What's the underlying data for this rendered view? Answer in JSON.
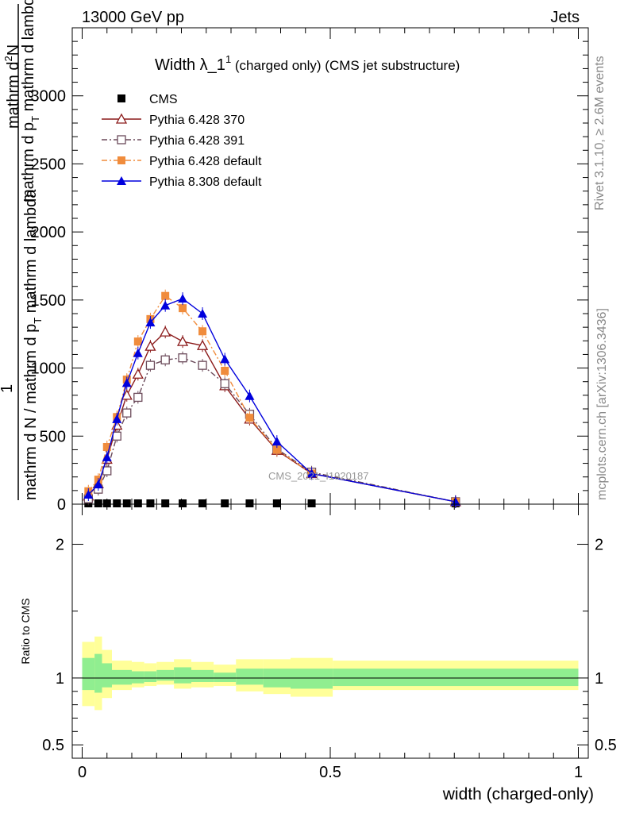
{
  "header": {
    "left": "13000 GeV pp",
    "right": "Jets"
  },
  "side": {
    "rivet": "Rivet 3.1.10, ≥ 2.6M events",
    "mcplots": "mcplots.cern.ch [arXiv:1306.3436]"
  },
  "watermark": "CMS_2021_I1920187",
  "title": {
    "main": "Width λ_1",
    "sup": "1",
    "sub": " (charged only) (CMS jet substructure)"
  },
  "ylabel": {
    "numerator_top": "mathrm d",
    "numerator_sup": "2",
    "numerator_rest": "N",
    "sub_part": "mathrm d p",
    "sub_T": "T",
    "sub_rest": " mathrm d lambda",
    "leading": "1",
    "denominator": "mathrm d N / mathrm d p",
    "denominator_T": "T",
    "denominator_rest": " mathrm d"
  },
  "ratio_ylabel": "Ratio to CMS",
  "xlabel": "width (charged-only)",
  "legend": [
    {
      "label": "CMS",
      "color": "#000000",
      "marker": "filled-square",
      "style": "none"
    },
    {
      "label": "Pythia 6.428 370",
      "color": "#8b1a1a",
      "marker": "open-triangle",
      "style": "solid"
    },
    {
      "label": "Pythia 6.428 391",
      "color": "#6b4a5a",
      "marker": "open-square",
      "style": "dashdot"
    },
    {
      "label": "Pythia 6.428 default",
      "color": "#f08c3c",
      "marker": "filled-square",
      "style": "dashdot"
    },
    {
      "label": "Pythia 8.308 default",
      "color": "#0000dd",
      "marker": "filled-triangle",
      "style": "solid"
    }
  ],
  "chart_data": [
    {
      "type": "line",
      "title": "Width λ_1^1 (charged only) (CMS jet substructure)",
      "xlim": [
        -0.02,
        1.02
      ],
      "ylim": [
        0,
        3500
      ],
      "ytick_values": [
        0,
        500,
        1000,
        1500,
        2000,
        2500,
        3000
      ],
      "ytick_labels": [
        "0",
        "500",
        "1000",
        "1500",
        "2000",
        "2500",
        "3000"
      ],
      "grid": false,
      "legend_position": "top-left",
      "x": [
        0.0125,
        0.0325,
        0.05,
        0.07,
        0.09,
        0.1125,
        0.1375,
        0.1675,
        0.2025,
        0.2425,
        0.2875,
        0.3375,
        0.3925,
        0.4625,
        0.7525
      ],
      "series": [
        {
          "name": "CMS",
          "values": [
            2,
            2,
            2,
            2,
            2,
            2,
            2,
            2,
            2,
            2,
            2,
            2,
            2,
            2,
            2
          ]
        },
        {
          "name": "Pythia 6.428 370",
          "values": [
            60,
            150,
            330,
            580,
            800,
            955,
            1160,
            1265,
            1195,
            1165,
            870,
            625,
            395,
            225,
            18
          ]
        },
        {
          "name": "Pythia 6.428 391",
          "values": [
            40,
            110,
            245,
            500,
            670,
            785,
            1020,
            1060,
            1075,
            1020,
            885,
            660,
            405,
            235,
            18
          ]
        },
        {
          "name": "Pythia 6.428 default",
          "values": [
            95,
            180,
            420,
            640,
            915,
            1195,
            1360,
            1530,
            1440,
            1270,
            980,
            635,
            400,
            225,
            18
          ]
        },
        {
          "name": "Pythia 8.308 default",
          "values": [
            70,
            145,
            345,
            625,
            890,
            1110,
            1335,
            1460,
            1510,
            1400,
            1065,
            795,
            460,
            225,
            18
          ]
        }
      ]
    },
    {
      "type": "area",
      "ylabel": "Ratio to CMS",
      "xlabel": "width (charged-only)",
      "xlim": [
        -0.02,
        1.02
      ],
      "ylim": [
        0.4,
        2.3
      ],
      "ytick_values": [
        0.5,
        1,
        2
      ],
      "ytick_labels": [
        "0.5",
        "1",
        "2"
      ],
      "xtick_values": [
        0,
        0.5,
        1
      ],
      "xtick_labels": [
        "0",
        "0.5",
        "1"
      ],
      "bins": [
        {
          "lo": 0.0,
          "hi": 0.025,
          "inner": [
            0.91,
            1.15
          ],
          "outer": [
            0.79,
            1.27
          ]
        },
        {
          "lo": 0.025,
          "hi": 0.04,
          "inner": [
            0.89,
            1.18
          ],
          "outer": [
            0.76,
            1.31
          ]
        },
        {
          "lo": 0.04,
          "hi": 0.06,
          "inner": [
            0.93,
            1.11
          ],
          "outer": [
            0.85,
            1.21
          ]
        },
        {
          "lo": 0.06,
          "hi": 0.08,
          "inner": [
            0.95,
            1.06
          ],
          "outer": [
            0.91,
            1.13
          ]
        },
        {
          "lo": 0.08,
          "hi": 0.1,
          "inner": [
            0.95,
            1.06
          ],
          "outer": [
            0.91,
            1.13
          ]
        },
        {
          "lo": 0.1,
          "hi": 0.125,
          "inner": [
            0.96,
            1.05
          ],
          "outer": [
            0.93,
            1.12
          ]
        },
        {
          "lo": 0.125,
          "hi": 0.15,
          "inner": [
            0.97,
            1.05
          ],
          "outer": [
            0.94,
            1.11
          ]
        },
        {
          "lo": 0.15,
          "hi": 0.185,
          "inner": [
            0.98,
            1.06
          ],
          "outer": [
            0.95,
            1.12
          ]
        },
        {
          "lo": 0.185,
          "hi": 0.22,
          "inner": [
            0.96,
            1.08
          ],
          "outer": [
            0.92,
            1.14
          ]
        },
        {
          "lo": 0.22,
          "hi": 0.265,
          "inner": [
            0.97,
            1.06
          ],
          "outer": [
            0.93,
            1.12
          ]
        },
        {
          "lo": 0.265,
          "hi": 0.31,
          "inner": [
            0.97,
            1.04
          ],
          "outer": [
            0.94,
            1.1
          ]
        },
        {
          "lo": 0.31,
          "hi": 0.365,
          "inner": [
            0.95,
            1.07
          ],
          "outer": [
            0.9,
            1.14
          ]
        },
        {
          "lo": 0.365,
          "hi": 0.42,
          "inner": [
            0.93,
            1.07
          ],
          "outer": [
            0.88,
            1.14
          ]
        },
        {
          "lo": 0.42,
          "hi": 0.505,
          "inner": [
            0.92,
            1.07
          ],
          "outer": [
            0.86,
            1.15
          ]
        },
        {
          "lo": 0.505,
          "hi": 1.0,
          "inner": [
            0.94,
            1.07
          ],
          "outer": [
            0.91,
            1.13
          ]
        }
      ]
    }
  ],
  "colors": {
    "inner_band": "#90ee90",
    "outer_band": "#ffff99",
    "watermark": "#999999",
    "side_text": "#888888"
  }
}
